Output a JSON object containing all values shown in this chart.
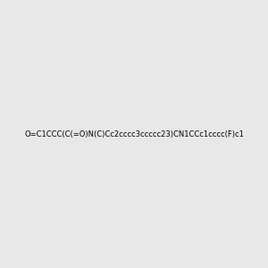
{
  "smiles": "O=C1CCC(C(=O)N(C)Cc2cccc3ccccc23)CN1CCc1cccc(F)c1",
  "image_size": 300,
  "background_color": "#e8e8e8",
  "bond_color": "#2d6b5e",
  "atom_colors": {
    "N": "#2020dd",
    "O": "#dd2020",
    "F": "#cc00cc"
  },
  "title": ""
}
